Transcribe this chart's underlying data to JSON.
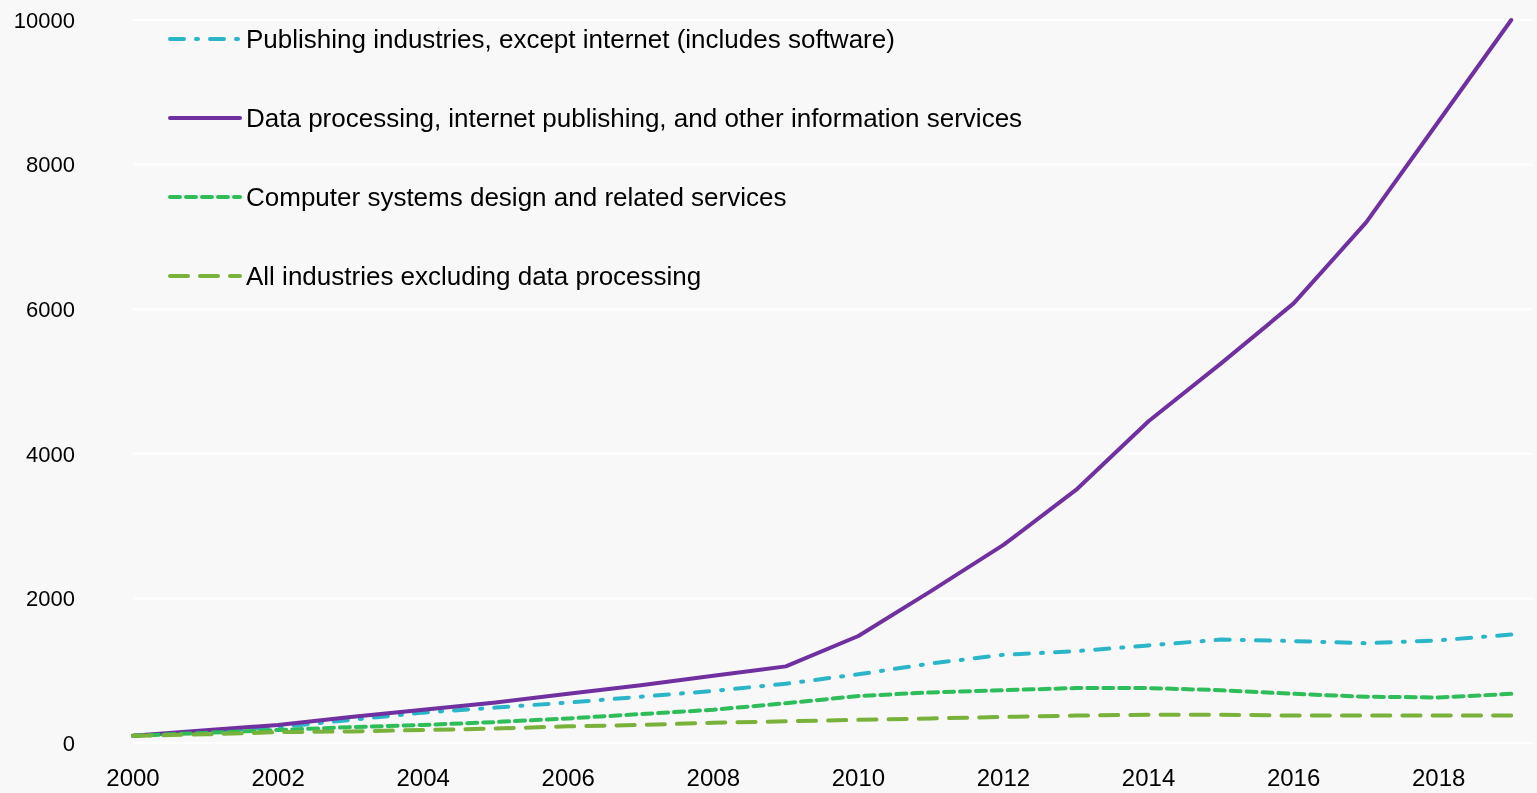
{
  "chart_data": {
    "type": "line",
    "x": [
      2000,
      2001,
      2002,
      2003,
      2004,
      2005,
      2006,
      2007,
      2008,
      2009,
      2010,
      2011,
      2012,
      2013,
      2014,
      2015,
      2016,
      2017,
      2018,
      2019
    ],
    "series": [
      {
        "name": "Publishing industries, except internet (includes software)",
        "color": "#2bb5c8",
        "line_style": "dashed",
        "values": [
          100,
          160,
          220,
          320,
          420,
          490,
          560,
          640,
          720,
          820,
          950,
          1100,
          1220,
          1270,
          1350,
          1430,
          1410,
          1380,
          1420,
          1500
        ]
      },
      {
        "name": "Data processing, internet publishing, and other information services",
        "color": "#7030a0",
        "line_style": "solid",
        "values": [
          100,
          175,
          250,
          360,
          460,
          560,
          680,
          800,
          930,
          1060,
          1480,
          2100,
          2740,
          3500,
          4450,
          5250,
          6080,
          7200,
          8600,
          10000
        ]
      },
      {
        "name": "Computer systems design and related services",
        "color": "#2ebd59",
        "line_style": "dashed",
        "values": [
          100,
          140,
          180,
          220,
          250,
          290,
          340,
          400,
          460,
          550,
          650,
          700,
          730,
          760,
          760,
          730,
          680,
          640,
          630,
          680
        ]
      },
      {
        "name": "All industries excluding data processing",
        "color": "#78b23a",
        "line_style": "dashed",
        "values": [
          100,
          120,
          150,
          160,
          180,
          200,
          230,
          250,
          280,
          300,
          320,
          340,
          360,
          380,
          390,
          390,
          380,
          380,
          380,
          380
        ]
      }
    ],
    "xlim": [
      2000,
      2019.3
    ],
    "xticks": [
      2000,
      2002,
      2004,
      2006,
      2008,
      2010,
      2012,
      2014,
      2016,
      2018
    ],
    "ylim": [
      0,
      10000
    ],
    "yticks": [
      0,
      2000,
      4000,
      6000,
      8000,
      10000
    ],
    "grid": "y",
    "legend": "top left"
  }
}
